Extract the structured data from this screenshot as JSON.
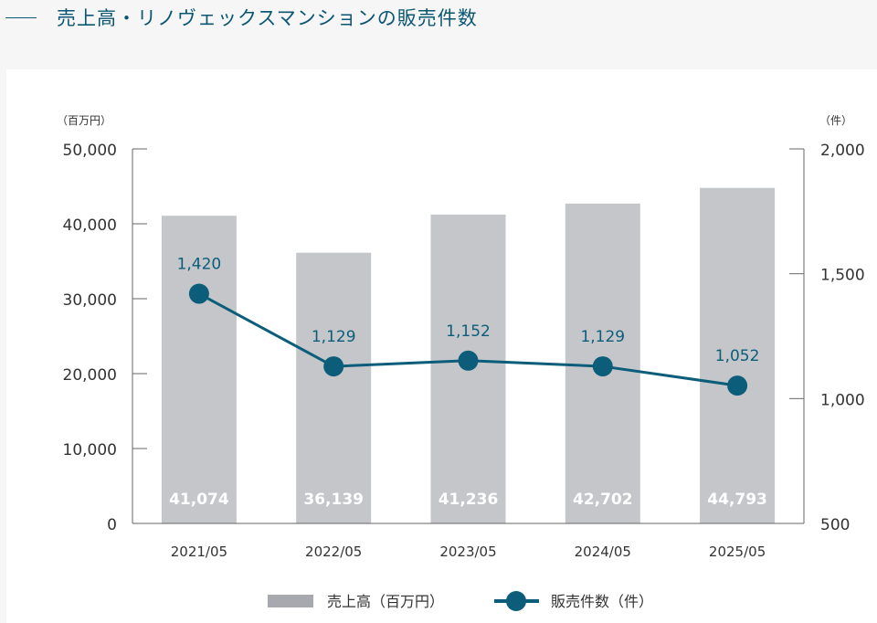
{
  "page_title": "売上高・リノヴェックスマンションの販売件数",
  "chart_data": {
    "type": "bar+line",
    "categories": [
      "2021/05",
      "2022/05",
      "2023/05",
      "2024/05",
      "2025/05"
    ],
    "series": [
      {
        "name": "売上高（百万円）",
        "type": "bar",
        "axis": "left",
        "values": [
          41074,
          36139,
          41236,
          42702,
          44793
        ],
        "labels": [
          "41,074",
          "36,139",
          "41,236",
          "42,702",
          "44,793"
        ],
        "color": "#c4c6ca"
      },
      {
        "name": "販売件数（件）",
        "type": "line",
        "axis": "right",
        "values": [
          1420,
          1129,
          1152,
          1129,
          1052
        ],
        "labels": [
          "1,420",
          "1,129",
          "1,152",
          "1,129",
          "1,052"
        ],
        "color": "#0b5d7a"
      }
    ],
    "left_axis": {
      "unit": "（百万円）",
      "ylim": [
        0,
        50000
      ],
      "ticks": [
        "0",
        "10,000",
        "20,000",
        "30,000",
        "40,000",
        "50,000"
      ],
      "tick_values": [
        0,
        10000,
        20000,
        30000,
        40000,
        50000
      ]
    },
    "right_axis": {
      "unit": "（件）",
      "ylim": [
        500,
        2000
      ],
      "ticks": [
        "500",
        "1,000",
        "1,500",
        "2,000"
      ],
      "tick_values": [
        500,
        1000,
        1500,
        2000
      ]
    },
    "grid": false,
    "legend_position": "bottom",
    "legend_bar_color": "#a7a9ae"
  }
}
